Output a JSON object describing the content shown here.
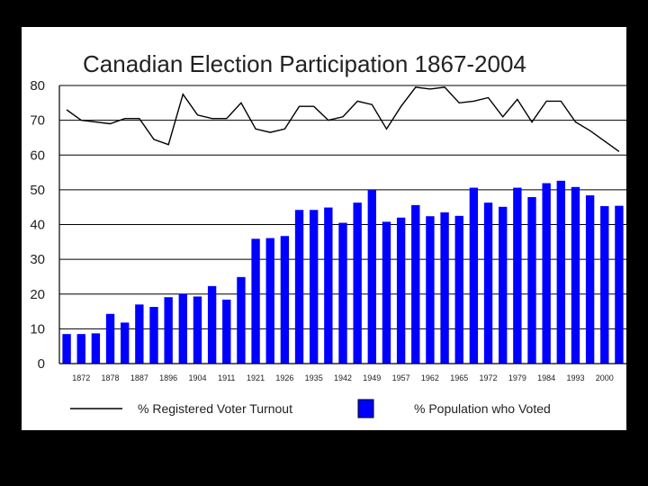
{
  "chart_data": {
    "type": "bar+line",
    "title": "Canadian Election Participation 1867-2004",
    "ylim": [
      0,
      80
    ],
    "yticks": [
      0,
      10,
      20,
      30,
      40,
      50,
      60,
      70,
      80
    ],
    "x_tick_labels": [
      "1872",
      "1878",
      "1887",
      "1896",
      "1904",
      "1911",
      "1921",
      "1926",
      "1935",
      "1942",
      "1949",
      "1957",
      "1962",
      "1965",
      "1972",
      "1979",
      "1984",
      "1993",
      "2000"
    ],
    "series": [
      {
        "name": "% Registered Voter Turnout",
        "type": "line",
        "color": "#000000",
        "values": [
          73,
          70,
          69.5,
          69,
          70.5,
          70.5,
          64.5,
          63,
          77.5,
          71.5,
          70.5,
          70.5,
          75,
          67.5,
          66.5,
          67.5,
          74,
          74,
          70,
          71,
          75.5,
          74.5,
          67.5,
          74,
          79.5,
          79,
          79.5,
          75,
          75.5,
          76.5,
          71,
          76,
          69.5,
          75.5,
          75.5,
          69.5,
          67,
          64,
          61
        ]
      },
      {
        "name": "% Population who Voted",
        "type": "bar",
        "color": "#0000ff",
        "values": [
          8.5,
          8.5,
          8.7,
          14.3,
          11.8,
          17,
          16.3,
          19.1,
          20.1,
          19.3,
          22.3,
          18.4,
          24.9,
          35.9,
          36.1,
          36.7,
          44.2,
          44.2,
          44.9,
          40.5,
          46.3,
          49.9,
          40.8,
          42,
          45.6,
          42.4,
          43.5,
          42.5,
          50.6,
          46.3,
          45.1,
          50.6,
          47.9,
          51.9,
          52.6,
          50.8,
          48.4,
          45.3,
          45.4
        ]
      }
    ]
  }
}
